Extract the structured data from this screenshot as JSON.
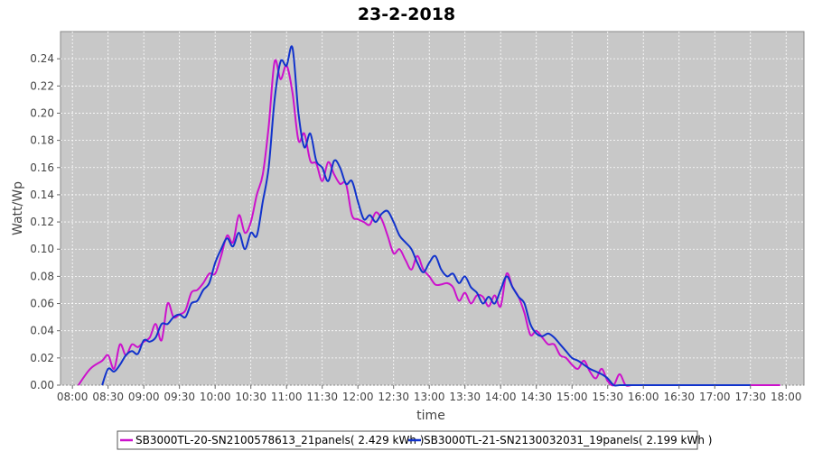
{
  "chart_data": {
    "type": "line",
    "title": "23-2-2018",
    "xlabel": "time",
    "ylabel": "Watt/Wp",
    "ylim": [
      0,
      0.26
    ],
    "y_ticks": [
      "0.00",
      "0.02",
      "0.04",
      "0.06",
      "0.08",
      "0.10",
      "0.12",
      "0.14",
      "0.16",
      "0.18",
      "0.20",
      "0.22",
      "0.24"
    ],
    "x_ticks": [
      "08:00",
      "08:30",
      "09:00",
      "09:30",
      "10:00",
      "10:30",
      "11:00",
      "11:30",
      "12:00",
      "12:30",
      "13:00",
      "13:30",
      "14:00",
      "14:30",
      "15:00",
      "15:30",
      "16:00",
      "16:30",
      "17:00",
      "17:30",
      "18:00"
    ],
    "grid": true,
    "legend_position": "bottom",
    "series": [
      {
        "name": "SB3000TL-20-SN2100578613_21panels( 2.429 kWh )",
        "color": "#cc11cc",
        "x": [
          "08:05",
          "08:15",
          "08:25",
          "08:30",
          "08:35",
          "08:40",
          "08:45",
          "08:50",
          "08:55",
          "09:00",
          "09:05",
          "09:10",
          "09:15",
          "09:20",
          "09:25",
          "09:30",
          "09:35",
          "09:40",
          "09:45",
          "09:50",
          "09:55",
          "10:00",
          "10:05",
          "10:10",
          "10:15",
          "10:20",
          "10:25",
          "10:30",
          "10:35",
          "10:40",
          "10:45",
          "10:50",
          "10:55",
          "11:00",
          "11:05",
          "11:10",
          "11:15",
          "11:20",
          "11:25",
          "11:30",
          "11:35",
          "11:40",
          "11:45",
          "11:50",
          "11:55",
          "12:00",
          "12:05",
          "12:10",
          "12:15",
          "12:20",
          "12:25",
          "12:30",
          "12:35",
          "12:40",
          "12:45",
          "12:50",
          "12:55",
          "13:00",
          "13:05",
          "13:10",
          "13:15",
          "13:20",
          "13:25",
          "13:30",
          "13:35",
          "13:40",
          "13:45",
          "13:50",
          "13:55",
          "14:00",
          "14:05",
          "14:10",
          "14:15",
          "14:20",
          "14:25",
          "14:30",
          "14:35",
          "14:40",
          "14:45",
          "14:50",
          "14:55",
          "15:00",
          "15:05",
          "15:10",
          "15:15",
          "15:20",
          "15:25",
          "15:30",
          "15:35",
          "15:40",
          "15:45",
          "15:50",
          "15:55",
          "16:00",
          "16:05",
          "16:10",
          "16:15",
          "16:20",
          "16:25",
          "16:30",
          "16:35",
          "16:40",
          "16:45",
          "16:50",
          "16:55",
          "17:00",
          "17:05",
          "17:10",
          "17:15",
          "17:20",
          "17:25",
          "17:30",
          "17:40",
          "17:50",
          "17:55"
        ],
        "y": [
          0.0,
          0.012,
          0.018,
          0.022,
          0.012,
          0.03,
          0.022,
          0.03,
          0.028,
          0.032,
          0.035,
          0.045,
          0.033,
          0.06,
          0.05,
          0.052,
          0.055,
          0.068,
          0.07,
          0.075,
          0.082,
          0.082,
          0.095,
          0.11,
          0.105,
          0.125,
          0.112,
          0.12,
          0.14,
          0.155,
          0.19,
          0.238,
          0.225,
          0.235,
          0.215,
          0.18,
          0.185,
          0.165,
          0.163,
          0.15,
          0.164,
          0.155,
          0.148,
          0.148,
          0.125,
          0.122,
          0.12,
          0.118,
          0.127,
          0.122,
          0.11,
          0.097,
          0.1,
          0.092,
          0.085,
          0.095,
          0.085,
          0.08,
          0.074,
          0.074,
          0.075,
          0.072,
          0.062,
          0.068,
          0.06,
          0.066,
          0.065,
          0.058,
          0.066,
          0.058,
          0.082,
          0.072,
          0.065,
          0.053,
          0.037,
          0.04,
          0.035,
          0.03,
          0.03,
          0.022,
          0.02,
          0.015,
          0.012,
          0.018,
          0.01,
          0.005,
          0.012,
          0.003,
          0.0,
          0.008,
          0.0,
          0.0,
          0.0,
          0.0,
          0.0,
          0.0,
          0.0,
          0.0,
          0.0,
          0.0,
          0.0,
          0.0,
          0.0,
          0.0,
          0.0,
          0.0,
          0.0,
          0.0,
          0.0,
          0.0,
          0.0,
          0.0,
          0.0,
          0.0,
          0.0
        ]
      },
      {
        "name": "SB3000TL-21-SN2130032031_19panels( 2.199 kWh )",
        "color": "#1133cc",
        "x": [
          "08:25",
          "08:30",
          "08:35",
          "08:40",
          "08:45",
          "08:50",
          "08:55",
          "09:00",
          "09:05",
          "09:10",
          "09:15",
          "09:20",
          "09:25",
          "09:30",
          "09:35",
          "09:40",
          "09:45",
          "09:50",
          "09:55",
          "10:00",
          "10:05",
          "10:10",
          "10:15",
          "10:20",
          "10:25",
          "10:30",
          "10:35",
          "10:40",
          "10:45",
          "10:50",
          "10:55",
          "11:00",
          "11:05",
          "11:10",
          "11:15",
          "11:20",
          "11:25",
          "11:30",
          "11:35",
          "11:40",
          "11:45",
          "11:50",
          "11:55",
          "12:00",
          "12:05",
          "12:10",
          "12:15",
          "12:20",
          "12:25",
          "12:30",
          "12:35",
          "12:40",
          "12:45",
          "12:50",
          "12:55",
          "13:00",
          "13:05",
          "13:10",
          "13:15",
          "13:20",
          "13:25",
          "13:30",
          "13:35",
          "13:40",
          "13:45",
          "13:50",
          "13:55",
          "14:00",
          "14:05",
          "14:10",
          "14:15",
          "14:20",
          "14:25",
          "14:30",
          "14:35",
          "14:40",
          "14:45",
          "14:50",
          "14:55",
          "15:00",
          "15:05",
          "15:10",
          "15:15",
          "15:20",
          "15:25",
          "15:30",
          "15:35",
          "15:40",
          "15:45",
          "15:50",
          "15:55",
          "16:00",
          "16:05",
          "16:10",
          "16:15",
          "16:20",
          "16:25",
          "16:30",
          "16:35",
          "16:40",
          "16:45",
          "16:50",
          "16:55",
          "17:00",
          "17:05",
          "17:10",
          "17:15",
          "17:20",
          "17:25",
          "17:30"
        ],
        "y": [
          0.0,
          0.012,
          0.01,
          0.015,
          0.022,
          0.025,
          0.023,
          0.033,
          0.032,
          0.035,
          0.045,
          0.045,
          0.05,
          0.052,
          0.05,
          0.06,
          0.062,
          0.07,
          0.075,
          0.09,
          0.1,
          0.108,
          0.102,
          0.112,
          0.1,
          0.112,
          0.11,
          0.135,
          0.16,
          0.21,
          0.238,
          0.235,
          0.248,
          0.2,
          0.175,
          0.185,
          0.165,
          0.16,
          0.15,
          0.165,
          0.16,
          0.148,
          0.15,
          0.135,
          0.122,
          0.125,
          0.12,
          0.126,
          0.128,
          0.12,
          0.11,
          0.105,
          0.1,
          0.09,
          0.083,
          0.09,
          0.095,
          0.085,
          0.08,
          0.082,
          0.075,
          0.08,
          0.072,
          0.068,
          0.06,
          0.065,
          0.06,
          0.07,
          0.08,
          0.072,
          0.065,
          0.06,
          0.045,
          0.038,
          0.036,
          0.038,
          0.035,
          0.03,
          0.025,
          0.02,
          0.018,
          0.015,
          0.012,
          0.01,
          0.008,
          0.005,
          0.0,
          0.0,
          0.0,
          0.0,
          0.0,
          0.0,
          0.0,
          0.0,
          0.0,
          0.0,
          0.0,
          0.0,
          0.0,
          0.0,
          0.0,
          0.0,
          0.0,
          0.0,
          0.0,
          0.0,
          0.0,
          0.0,
          0.0,
          0.0
        ]
      }
    ]
  }
}
